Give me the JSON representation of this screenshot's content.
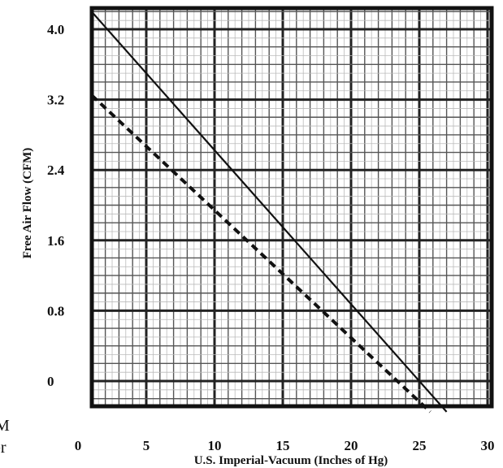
{
  "chart_data": {
    "type": "line",
    "title": "",
    "xlabel": "U.S. Imperial-Vacuum (Inches of Hg)",
    "ylabel": "Free Air Flow (CFM)",
    "x_ticks": [
      "0",
      "5",
      "10",
      "15",
      "20",
      "25",
      "30"
    ],
    "y_ticks": [
      "4.0",
      "3.2",
      "2.4",
      "1.6",
      "0.8",
      "0"
    ],
    "xlim": [
      0,
      31
    ],
    "ylim": [
      -0.35,
      4.3
    ],
    "grid": true,
    "legend": "none",
    "series": [
      {
        "style": "solid",
        "x": [
          1,
          27
        ],
        "y": [
          4.2,
          -0.35
        ]
      },
      {
        "style": "dashed",
        "x": [
          1,
          25.8
        ],
        "y": [
          3.25,
          -0.35
        ]
      }
    ]
  },
  "cropped_left_text": [
    "M",
    "er"
  ]
}
